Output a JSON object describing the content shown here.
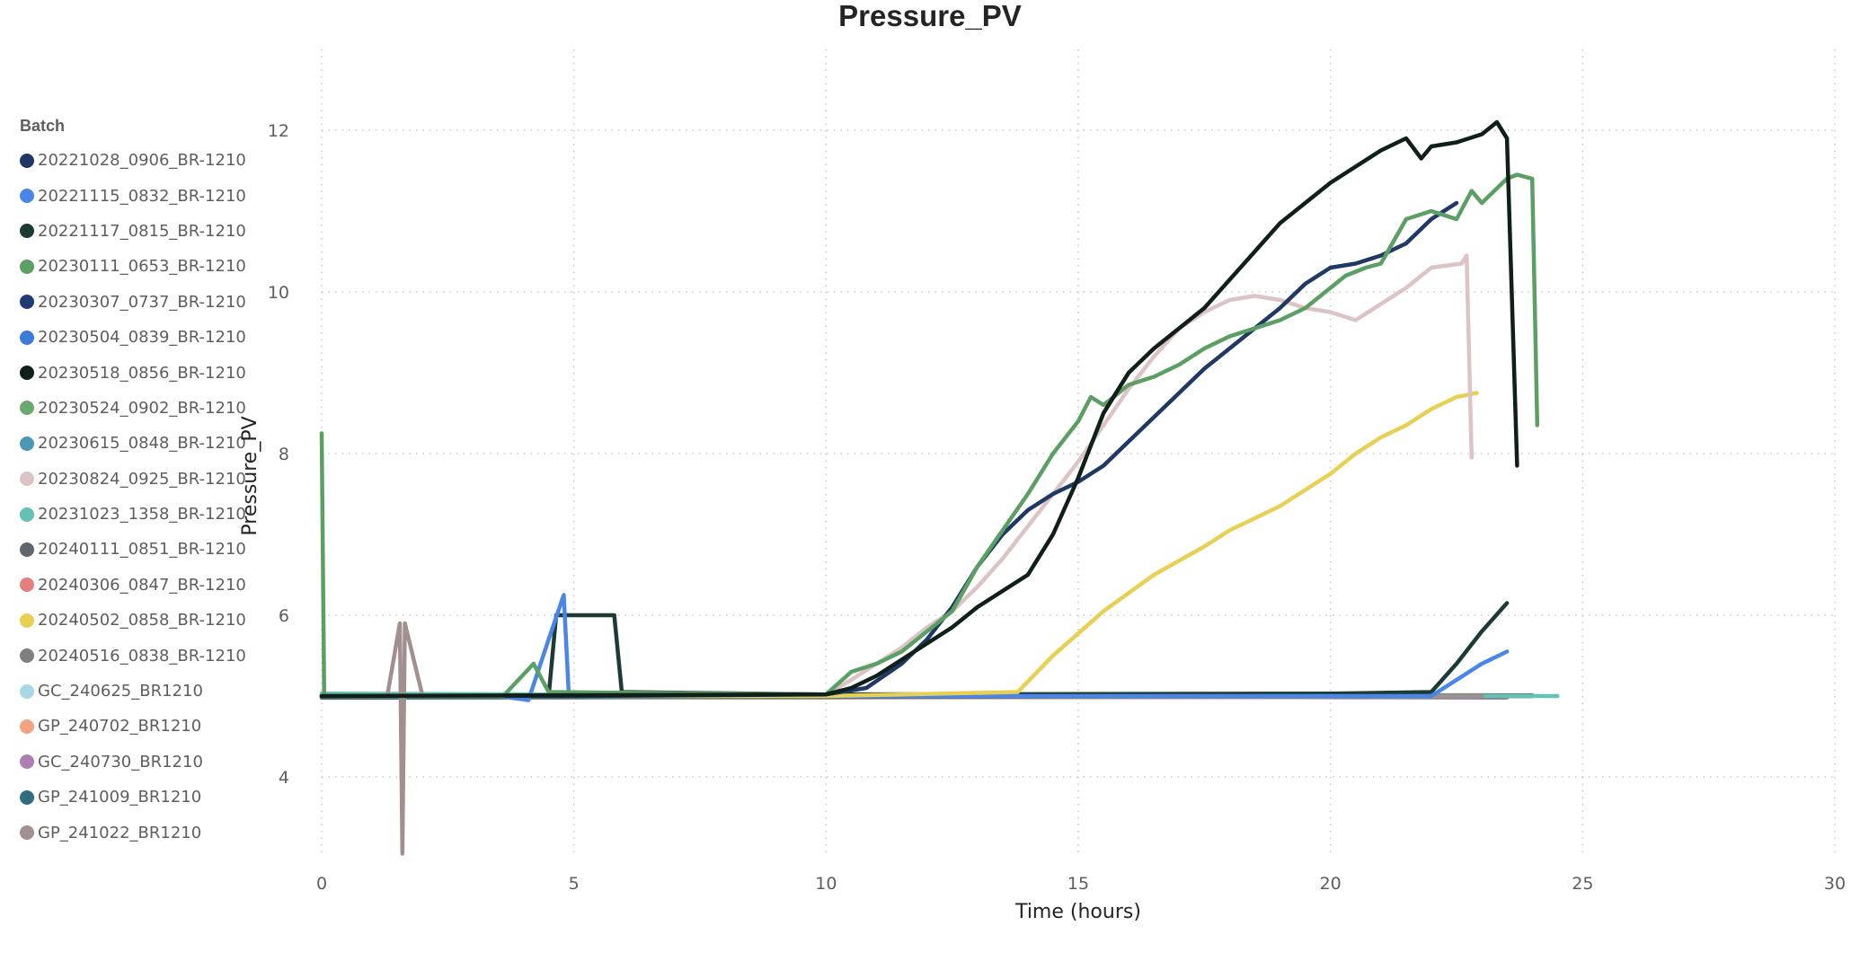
{
  "chart_data": {
    "type": "line",
    "title": "Pressure_PV",
    "xlabel": "Time (hours)",
    "ylabel": "Pressure_PV",
    "xlim": [
      0,
      30
    ],
    "ylim": [
      3.0,
      13.0
    ],
    "xticks": [
      0,
      5,
      10,
      15,
      20,
      25,
      30
    ],
    "yticks": [
      4,
      6,
      8,
      10,
      12
    ],
    "grid": true,
    "legend": {
      "title": "Batch",
      "position": "left"
    },
    "series": [
      {
        "name": "20221028_0906_BR-1210",
        "color": "#1f3864",
        "points": [
          [
            0,
            5.0
          ],
          [
            5,
            5.0
          ],
          [
            10,
            5.02
          ],
          [
            10.8,
            5.1
          ],
          [
            11.5,
            5.4
          ],
          [
            12,
            5.7
          ],
          [
            12.5,
            6.1
          ],
          [
            13,
            6.6
          ],
          [
            13.5,
            7.0
          ],
          [
            14,
            7.3
          ],
          [
            14.5,
            7.5
          ],
          [
            15,
            7.65
          ],
          [
            15.5,
            7.85
          ],
          [
            16,
            8.15
          ],
          [
            16.5,
            8.45
          ],
          [
            17,
            8.75
          ],
          [
            17.5,
            9.05
          ],
          [
            18,
            9.3
          ],
          [
            18.5,
            9.55
          ],
          [
            19,
            9.8
          ],
          [
            19.5,
            10.1
          ],
          [
            20,
            10.3
          ],
          [
            20.5,
            10.35
          ],
          [
            21,
            10.45
          ],
          [
            21.5,
            10.6
          ],
          [
            22,
            10.9
          ],
          [
            22.5,
            11.1
          ]
        ]
      },
      {
        "name": "20221115_0832_BR-1210",
        "color": "#4a86e8",
        "points": [
          [
            0,
            5.0
          ],
          [
            3.5,
            5.0
          ],
          [
            4.1,
            4.95
          ],
          [
            4.5,
            5.7
          ],
          [
            4.8,
            6.25
          ],
          [
            4.9,
            5.0
          ],
          [
            10,
            5.0
          ],
          [
            22,
            5.0
          ],
          [
            23,
            5.4
          ],
          [
            23.5,
            5.55
          ]
        ]
      },
      {
        "name": "20221117_0815_BR-1210",
        "color": "#1d3b36",
        "points": [
          [
            0,
            5.0
          ],
          [
            4.5,
            5.0
          ],
          [
            4.65,
            6.0
          ],
          [
            5.8,
            6.0
          ],
          [
            5.95,
            5.05
          ],
          [
            10,
            5.02
          ],
          [
            20,
            5.03
          ],
          [
            22,
            5.05
          ],
          [
            22.5,
            5.4
          ],
          [
            23,
            5.8
          ],
          [
            23.5,
            6.15
          ]
        ]
      },
      {
        "name": "20230111_0653_BR-1210",
        "color": "#5b9f64",
        "points": [
          [
            0,
            8.25
          ],
          [
            0.05,
            5.0
          ],
          [
            3.6,
            5.0
          ],
          [
            4.2,
            5.4
          ],
          [
            4.5,
            5.05
          ],
          [
            10,
            5.02
          ],
          [
            10.5,
            5.3
          ],
          [
            11,
            5.4
          ],
          [
            11.5,
            5.55
          ],
          [
            12,
            5.8
          ],
          [
            12.5,
            6.05
          ],
          [
            13,
            6.6
          ],
          [
            13.5,
            7.05
          ],
          [
            14,
            7.5
          ],
          [
            14.5,
            8.0
          ],
          [
            15,
            8.4
          ],
          [
            15.25,
            8.7
          ],
          [
            15.5,
            8.6
          ],
          [
            16,
            8.85
          ],
          [
            16.5,
            8.95
          ],
          [
            17,
            9.1
          ],
          [
            17.5,
            9.3
          ],
          [
            18,
            9.45
          ],
          [
            18.5,
            9.55
          ],
          [
            19,
            9.65
          ],
          [
            19.5,
            9.8
          ],
          [
            20,
            10.05
          ],
          [
            20.3,
            10.2
          ],
          [
            20.7,
            10.3
          ],
          [
            21,
            10.35
          ],
          [
            21.5,
            10.9
          ],
          [
            22,
            11.0
          ],
          [
            22.5,
            10.9
          ],
          [
            22.8,
            11.25
          ],
          [
            23,
            11.1
          ],
          [
            23.5,
            11.4
          ],
          [
            23.7,
            11.45
          ],
          [
            24,
            11.4
          ],
          [
            24.1,
            8.35
          ]
        ]
      },
      {
        "name": "20230307_0737_BR-1210",
        "color": "#203a73",
        "points": [
          [
            0,
            5.0
          ],
          [
            10,
            5.0
          ],
          [
            24,
            5.0
          ]
        ]
      },
      {
        "name": "20230504_0839_BR-1210",
        "color": "#3d7bd9",
        "points": [
          [
            0,
            5.02
          ],
          [
            10,
            5.0
          ],
          [
            23,
            5.0
          ]
        ]
      },
      {
        "name": "20230518_0856_BR-1210",
        "color": "#0f1f1a",
        "points": [
          [
            0,
            5.0
          ],
          [
            10,
            5.02
          ],
          [
            10.5,
            5.1
          ],
          [
            11,
            5.25
          ],
          [
            11.5,
            5.45
          ],
          [
            12,
            5.65
          ],
          [
            12.5,
            5.85
          ],
          [
            13,
            6.1
          ],
          [
            13.5,
            6.3
          ],
          [
            14,
            6.5
          ],
          [
            14.5,
            7.0
          ],
          [
            15,
            7.7
          ],
          [
            15.5,
            8.5
          ],
          [
            16,
            9.0
          ],
          [
            16.5,
            9.3
          ],
          [
            17,
            9.55
          ],
          [
            17.5,
            9.8
          ],
          [
            18,
            10.15
          ],
          [
            18.5,
            10.5
          ],
          [
            19,
            10.85
          ],
          [
            19.5,
            11.1
          ],
          [
            20,
            11.35
          ],
          [
            20.5,
            11.55
          ],
          [
            21,
            11.75
          ],
          [
            21.5,
            11.9
          ],
          [
            21.8,
            11.65
          ],
          [
            22,
            11.8
          ],
          [
            22.5,
            11.85
          ],
          [
            23,
            11.95
          ],
          [
            23.3,
            12.1
          ],
          [
            23.5,
            11.9
          ],
          [
            23.7,
            7.85
          ]
        ]
      },
      {
        "name": "20230524_0902_BR-1210",
        "color": "#6aa96f",
        "points": [
          [
            0,
            5.02
          ],
          [
            10,
            5.01
          ],
          [
            24,
            5.0
          ]
        ]
      },
      {
        "name": "20230615_0848_BR-1210",
        "color": "#4b97b5",
        "points": [
          [
            0,
            4.98
          ],
          [
            10,
            4.99
          ],
          [
            23.8,
            5.0
          ]
        ]
      },
      {
        "name": "20230824_0925_BR-1210",
        "color": "#dcc3c5",
        "points": [
          [
            0,
            5.0
          ],
          [
            10,
            5.02
          ],
          [
            10.5,
            5.2
          ],
          [
            11,
            5.4
          ],
          [
            11.5,
            5.6
          ],
          [
            12,
            5.85
          ],
          [
            12.5,
            6.05
          ],
          [
            13,
            6.35
          ],
          [
            13.5,
            6.7
          ],
          [
            14,
            7.1
          ],
          [
            14.5,
            7.5
          ],
          [
            15,
            7.9
          ],
          [
            15.5,
            8.35
          ],
          [
            16,
            8.8
          ],
          [
            16.5,
            9.2
          ],
          [
            17,
            9.55
          ],
          [
            17.5,
            9.75
          ],
          [
            18,
            9.9
          ],
          [
            18.5,
            9.95
          ],
          [
            19,
            9.9
          ],
          [
            19.5,
            9.8
          ],
          [
            20,
            9.75
          ],
          [
            20.5,
            9.65
          ],
          [
            21,
            9.85
          ],
          [
            21.5,
            10.05
          ],
          [
            22,
            10.3
          ],
          [
            22.6,
            10.35
          ],
          [
            22.7,
            10.45
          ],
          [
            22.8,
            7.95
          ]
        ]
      },
      {
        "name": "20231023_1358_BR-1210",
        "color": "#62c2b3",
        "points": [
          [
            0,
            5.03
          ],
          [
            10,
            5.01
          ],
          [
            24.5,
            5.0
          ]
        ]
      },
      {
        "name": "20240111_0851_BR-1210",
        "color": "#5e656b",
        "points": [
          [
            0,
            4.99
          ],
          [
            10,
            5.0
          ],
          [
            24,
            5.01
          ]
        ]
      },
      {
        "name": "20240306_0847_BR-1210",
        "color": "#e57f7f",
        "points": [
          [
            0,
            5.0
          ],
          [
            10,
            4.99
          ],
          [
            23.5,
            5.0
          ]
        ]
      },
      {
        "name": "20240502_0858_BR-1210",
        "color": "#e8d054",
        "points": [
          [
            0,
            5.0
          ],
          [
            10,
            5.0
          ],
          [
            13.8,
            5.05
          ],
          [
            14.5,
            5.5
          ],
          [
            15.5,
            6.05
          ],
          [
            16.5,
            6.5
          ],
          [
            17.5,
            6.85
          ],
          [
            18,
            7.05
          ],
          [
            18.5,
            7.2
          ],
          [
            19,
            7.35
          ],
          [
            19.5,
            7.55
          ],
          [
            20,
            7.75
          ],
          [
            20.5,
            8.0
          ],
          [
            21,
            8.2
          ],
          [
            21.5,
            8.35
          ],
          [
            22,
            8.55
          ],
          [
            22.5,
            8.7
          ],
          [
            22.9,
            8.75
          ]
        ]
      },
      {
        "name": "20240516_0838_BR-1210",
        "color": "#808080",
        "points": [
          [
            0,
            5.01
          ],
          [
            10,
            5.0
          ],
          [
            23.5,
            4.99
          ]
        ]
      },
      {
        "name": "GC_240625_BR1210",
        "color": "#a8d8e8",
        "points": [
          [
            0,
            5.02
          ],
          [
            10,
            5.01
          ],
          [
            23,
            5.0
          ]
        ]
      },
      {
        "name": "GP_240702_BR1210",
        "color": "#f2a37f",
        "points": [
          [
            0,
            4.99
          ],
          [
            10,
            4.98
          ],
          [
            23.5,
            4.99
          ]
        ]
      },
      {
        "name": "GC_240730_BR1210",
        "color": "#ad7fb3",
        "points": [
          [
            0,
            5.0
          ],
          [
            10,
            5.0
          ],
          [
            23.5,
            4.98
          ]
        ]
      },
      {
        "name": "GP_241009_BR1210",
        "color": "#336c80",
        "points": [
          [
            0,
            4.98
          ],
          [
            10,
            4.99
          ],
          [
            23.2,
            5.0
          ]
        ]
      },
      {
        "name": "GP_241022_BR1210",
        "color": "#a09090",
        "points": [
          [
            0,
            5.0
          ],
          [
            1.3,
            5.0
          ],
          [
            1.55,
            5.9
          ],
          [
            1.6,
            3.05
          ],
          [
            1.65,
            5.9
          ],
          [
            2.0,
            5.0
          ],
          [
            10,
            5.0
          ],
          [
            23,
            5.0
          ]
        ]
      }
    ]
  }
}
